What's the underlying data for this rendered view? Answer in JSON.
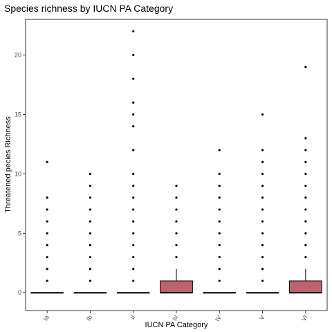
{
  "chart_data": {
    "type": "boxplot",
    "title": "Species richness by IUCN PA Category",
    "xlabel": "IUCN PA Category",
    "ylabel": "Threatened pecies Richness",
    "categories": [
      "Ia",
      "Ib",
      "II",
      "III",
      "IV",
      "V",
      "VI"
    ],
    "ylim": [
      -1.5,
      23
    ],
    "yticks": [
      0,
      5,
      10,
      15,
      20
    ],
    "grid": false,
    "box_fill": "#c0616e",
    "colors": {
      "axis_line": "#333333",
      "box_border": "#000000",
      "point": "#000000",
      "tick_text": "#4d4d4d"
    },
    "boxes": [
      {
        "category": "Ia",
        "q1": 0,
        "median": 0,
        "q3": 0,
        "whisker_low": 0,
        "whisker_high": 0,
        "outliers": [
          1,
          2,
          3,
          4,
          5,
          6,
          7,
          8,
          11
        ]
      },
      {
        "category": "Ib",
        "q1": 0,
        "median": 0,
        "q3": 0,
        "whisker_low": 0,
        "whisker_high": 0,
        "outliers": [
          1,
          2,
          3,
          4,
          5,
          6,
          7,
          8,
          9,
          10
        ]
      },
      {
        "category": "II",
        "q1": 0,
        "median": 0,
        "q3": 0,
        "whisker_low": 0,
        "whisker_high": 0,
        "outliers": [
          1,
          2,
          3,
          4,
          5,
          6,
          7,
          8,
          9,
          10,
          12,
          14,
          15,
          16,
          18,
          20,
          22
        ]
      },
      {
        "category": "III",
        "q1": 0,
        "median": 0,
        "q3": 1,
        "whisker_low": 0,
        "whisker_high": 2,
        "outliers": [
          3,
          4,
          5,
          6,
          7,
          8,
          9
        ]
      },
      {
        "category": "IV",
        "q1": 0,
        "median": 0,
        "q3": 0,
        "whisker_low": 0,
        "whisker_high": 0,
        "outliers": [
          1,
          2,
          3,
          4,
          5,
          6,
          7,
          8,
          9,
          10,
          12
        ]
      },
      {
        "category": "V",
        "q1": 0,
        "median": 0,
        "q3": 0,
        "whisker_low": 0,
        "whisker_high": 0,
        "outliers": [
          1,
          2,
          3,
          4,
          5,
          6,
          7,
          8,
          9,
          10,
          11,
          12,
          15
        ]
      },
      {
        "category": "VI",
        "q1": 0,
        "median": 0,
        "q3": 1,
        "whisker_low": 0,
        "whisker_high": 2,
        "outliers": [
          3,
          4,
          5,
          6,
          7,
          8,
          9,
          10,
          11,
          12,
          13,
          19
        ]
      }
    ]
  }
}
